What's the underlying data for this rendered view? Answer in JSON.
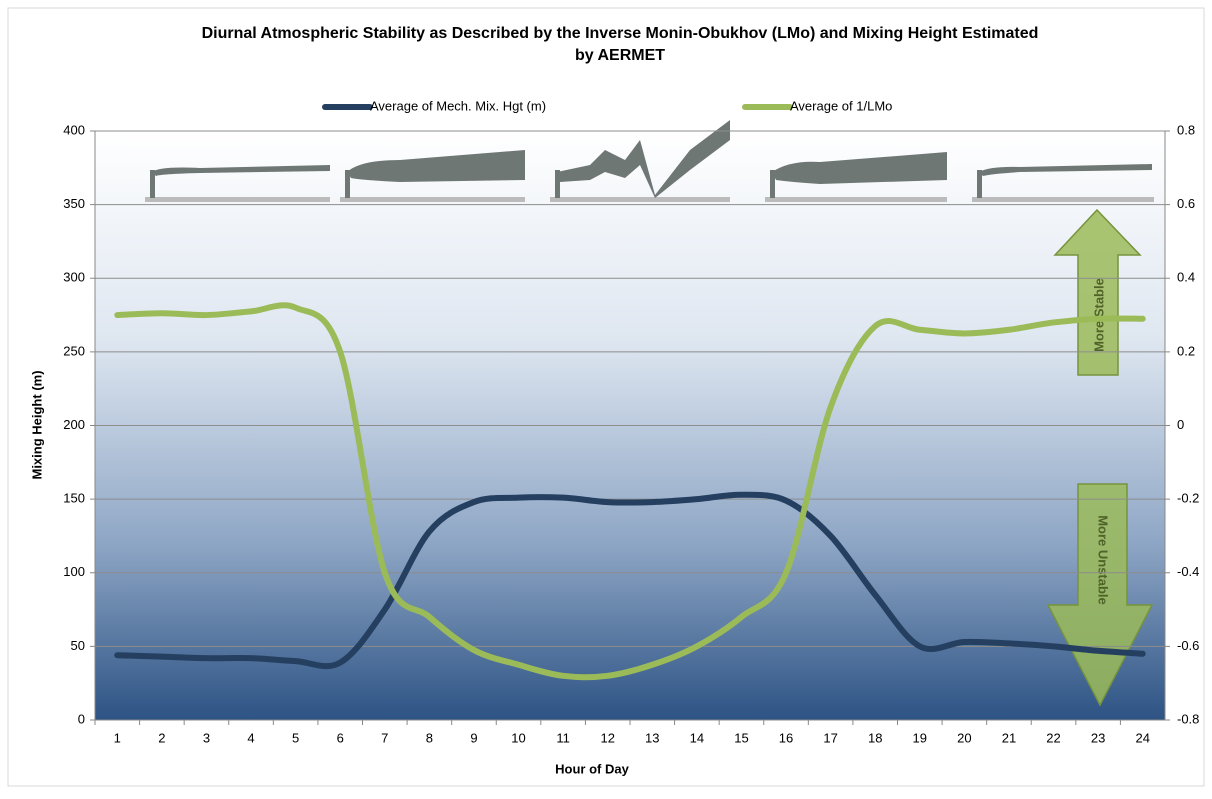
{
  "chart_data": {
    "type": "line",
    "title": [
      "Diurnal Atmospheric Stability as Described by the Inverse Monin-Obukhov (LMo) and Mixing Height Estimated",
      "by AERMET"
    ],
    "x_label": "Hour of Day",
    "y_label": "Mixing Height (m)",
    "categories": [
      1,
      2,
      3,
      4,
      5,
      6,
      7,
      8,
      9,
      10,
      11,
      12,
      13,
      14,
      15,
      16,
      17,
      18,
      19,
      20,
      21,
      22,
      23,
      24
    ],
    "series": [
      {
        "name": "Average of Mech. Mix. Hgt (m)",
        "color": "#243f60",
        "values": [
          44,
          43,
          42,
          42,
          40,
          39,
          75,
          128,
          148,
          151,
          151,
          148,
          148,
          150,
          153,
          149,
          125,
          85,
          50,
          53,
          52,
          50,
          47,
          45
        ]
      },
      {
        "name": "Average of 1/LMo",
        "color": "#9bbb59",
        "axis": "y2",
        "values": [
          0.3,
          0.305,
          0.3,
          0.31,
          0.32,
          0.2,
          -0.4,
          -0.52,
          -0.61,
          -0.65,
          -0.68,
          -0.68,
          -0.65,
          -0.6,
          -0.52,
          -0.4,
          0.05,
          0.27,
          0.26,
          0.25,
          0.26,
          0.28,
          0.29,
          0.29
        ]
      }
    ],
    "ylim": [
      0,
      400
    ],
    "yticks": [
      0,
      50,
      100,
      150,
      200,
      250,
      300,
      350,
      400
    ],
    "y2lim": [
      -0.8,
      0.8
    ],
    "y2ticks": [
      -0.8,
      -0.6,
      -0.4,
      -0.2,
      0,
      0.2,
      0.4,
      0.6,
      0.8
    ],
    "grid": true,
    "legend": "top",
    "annotations": [
      "More Stable",
      "More Unstable"
    ]
  }
}
